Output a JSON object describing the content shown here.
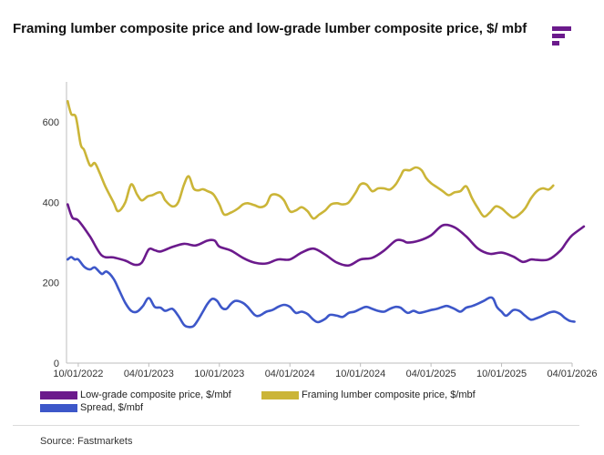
{
  "header": {
    "title": "Framing lumber composite price and low-grade lumber composite price, $/ mbf"
  },
  "brand": {
    "logo_icon": "fastmarkets-logo-icon",
    "color": "#6b1a8c"
  },
  "source": "Source: Fastmarkets",
  "chart_data": {
    "type": "line",
    "title": "Framing lumber composite price and low-grade lumber composite price, $/ mbf",
    "xlabel": "",
    "ylabel": "",
    "ylim": [
      0,
      700
    ],
    "yticks": [
      0,
      200,
      400,
      600
    ],
    "x_tick_labels": [
      "10/01/2022",
      "04/01/2023",
      "10/01/2023",
      "04/01/2024",
      "10/01/2024",
      "04/01/2025",
      "10/01/2025",
      "04/01/2026"
    ],
    "x_tick_positions": [
      0,
      6,
      12,
      18,
      24,
      30,
      36,
      42
    ],
    "x_range": [
      -1,
      42
    ],
    "x_index_note": "months since 10/01/2022",
    "grid": false,
    "legend_position": "bottom",
    "series": [
      {
        "name": "Low-grade composite price, $/mbf",
        "color": "#6b1a8c",
        "points": [
          [
            -0.9,
            395
          ],
          [
            -0.5,
            362
          ],
          [
            0,
            355
          ],
          [
            1,
            315
          ],
          [
            2,
            268
          ],
          [
            3,
            263
          ],
          [
            4,
            255
          ],
          [
            4.8,
            245
          ],
          [
            5.4,
            250
          ],
          [
            6,
            283
          ],
          [
            6.5,
            281
          ],
          [
            7,
            278
          ],
          [
            8,
            289
          ],
          [
            9,
            297
          ],
          [
            10,
            293
          ],
          [
            11,
            305
          ],
          [
            11.6,
            305
          ],
          [
            12,
            290
          ],
          [
            13,
            280
          ],
          [
            14,
            262
          ],
          [
            15,
            250
          ],
          [
            16,
            248
          ],
          [
            17,
            258
          ],
          [
            18,
            258
          ],
          [
            19,
            275
          ],
          [
            20,
            285
          ],
          [
            21,
            270
          ],
          [
            22,
            250
          ],
          [
            23,
            243
          ],
          [
            24,
            258
          ],
          [
            25,
            262
          ],
          [
            26,
            280
          ],
          [
            27,
            305
          ],
          [
            27.6,
            305
          ],
          [
            28,
            300
          ],
          [
            29,
            305
          ],
          [
            30,
            318
          ],
          [
            31,
            343
          ],
          [
            32,
            338
          ],
          [
            33,
            315
          ],
          [
            34,
            285
          ],
          [
            35,
            272
          ],
          [
            36,
            275
          ],
          [
            37,
            265
          ],
          [
            37.8,
            252
          ],
          [
            38.5,
            258
          ],
          [
            39,
            257
          ],
          [
            40,
            258
          ],
          [
            41,
            280
          ],
          [
            41.5,
            300
          ],
          [
            42,
            318
          ],
          [
            43,
            340
          ]
        ]
      },
      {
        "name": "Framing lumber composite price, $/mbf",
        "color": "#cbb538",
        "points": [
          [
            -0.9,
            652
          ],
          [
            -0.6,
            620
          ],
          [
            -0.2,
            612
          ],
          [
            0.2,
            545
          ],
          [
            0.5,
            530
          ],
          [
            1,
            492
          ],
          [
            1.4,
            498
          ],
          [
            1.8,
            475
          ],
          [
            2.3,
            440
          ],
          [
            3,
            400
          ],
          [
            3.4,
            378
          ],
          [
            4,
            400
          ],
          [
            4.5,
            445
          ],
          [
            5,
            420
          ],
          [
            5.4,
            405
          ],
          [
            5.9,
            415
          ],
          [
            6.3,
            418
          ],
          [
            7,
            425
          ],
          [
            7.4,
            405
          ],
          [
            8,
            390
          ],
          [
            8.5,
            400
          ],
          [
            9,
            445
          ],
          [
            9.4,
            465
          ],
          [
            9.8,
            435
          ],
          [
            10.2,
            430
          ],
          [
            10.6,
            433
          ],
          [
            11,
            428
          ],
          [
            11.5,
            420
          ],
          [
            12,
            395
          ],
          [
            12.4,
            370
          ],
          [
            13,
            375
          ],
          [
            13.6,
            385
          ],
          [
            14,
            395
          ],
          [
            14.4,
            398
          ],
          [
            15,
            393
          ],
          [
            15.5,
            388
          ],
          [
            16,
            395
          ],
          [
            16.4,
            418
          ],
          [
            17,
            418
          ],
          [
            17.5,
            405
          ],
          [
            18,
            378
          ],
          [
            18.5,
            380
          ],
          [
            19,
            388
          ],
          [
            19.5,
            378
          ],
          [
            20,
            360
          ],
          [
            20.5,
            370
          ],
          [
            21,
            380
          ],
          [
            21.5,
            395
          ],
          [
            22,
            398
          ],
          [
            22.5,
            395
          ],
          [
            23,
            400
          ],
          [
            23.6,
            425
          ],
          [
            24,
            445
          ],
          [
            24.5,
            445
          ],
          [
            25,
            428
          ],
          [
            25.5,
            435
          ],
          [
            26,
            435
          ],
          [
            26.5,
            432
          ],
          [
            27,
            445
          ],
          [
            27.4,
            465
          ],
          [
            27.7,
            480
          ],
          [
            28.2,
            480
          ],
          [
            28.7,
            487
          ],
          [
            29.2,
            480
          ],
          [
            29.6,
            460
          ],
          [
            30,
            448
          ],
          [
            30.5,
            438
          ],
          [
            31,
            428
          ],
          [
            31.5,
            418
          ],
          [
            32,
            425
          ],
          [
            32.5,
            428
          ],
          [
            33,
            440
          ],
          [
            33.5,
            410
          ],
          [
            34,
            385
          ],
          [
            34.5,
            365
          ],
          [
            35,
            375
          ],
          [
            35.5,
            390
          ],
          [
            36,
            385
          ],
          [
            36.5,
            372
          ],
          [
            37,
            362
          ],
          [
            37.5,
            370
          ],
          [
            38,
            385
          ],
          [
            38.5,
            410
          ],
          [
            39,
            428
          ],
          [
            39.5,
            435
          ],
          [
            40,
            432
          ],
          [
            40.4,
            442
          ]
        ]
      },
      {
        "name": "Spread, $/mbf",
        "color": "#3d57c9",
        "points": [
          [
            -0.9,
            258
          ],
          [
            -0.6,
            264
          ],
          [
            -0.3,
            258
          ],
          [
            0,
            258
          ],
          [
            0.5,
            240
          ],
          [
            1,
            233
          ],
          [
            1.4,
            238
          ],
          [
            2,
            222
          ],
          [
            2.4,
            228
          ],
          [
            3,
            210
          ],
          [
            3.5,
            180
          ],
          [
            4,
            150
          ],
          [
            4.5,
            130
          ],
          [
            5,
            128
          ],
          [
            5.5,
            142
          ],
          [
            6,
            162
          ],
          [
            6.5,
            140
          ],
          [
            7,
            138
          ],
          [
            7.4,
            130
          ],
          [
            8,
            135
          ],
          [
            8.5,
            118
          ],
          [
            9,
            95
          ],
          [
            9.4,
            90
          ],
          [
            9.8,
            92
          ],
          [
            10.2,
            108
          ],
          [
            10.6,
            128
          ],
          [
            11,
            148
          ],
          [
            11.4,
            160
          ],
          [
            11.8,
            155
          ],
          [
            12.2,
            138
          ],
          [
            12.6,
            135
          ],
          [
            13,
            148
          ],
          [
            13.4,
            155
          ],
          [
            14,
            150
          ],
          [
            14.4,
            140
          ],
          [
            15,
            120
          ],
          [
            15.4,
            118
          ],
          [
            16,
            128
          ],
          [
            16.5,
            132
          ],
          [
            17,
            140
          ],
          [
            17.5,
            145
          ],
          [
            18,
            140
          ],
          [
            18.5,
            125
          ],
          [
            19,
            128
          ],
          [
            19.5,
            122
          ],
          [
            20,
            108
          ],
          [
            20.4,
            102
          ],
          [
            21,
            110
          ],
          [
            21.4,
            120
          ],
          [
            22,
            118
          ],
          [
            22.5,
            115
          ],
          [
            23,
            125
          ],
          [
            23.5,
            128
          ],
          [
            24,
            135
          ],
          [
            24.5,
            140
          ],
          [
            25,
            135
          ],
          [
            25.5,
            130
          ],
          [
            26,
            128
          ],
          [
            26.5,
            135
          ],
          [
            27,
            140
          ],
          [
            27.4,
            138
          ],
          [
            28,
            125
          ],
          [
            28.5,
            130
          ],
          [
            29,
            125
          ],
          [
            29.5,
            128
          ],
          [
            30,
            132
          ],
          [
            30.5,
            135
          ],
          [
            31,
            140
          ],
          [
            31.4,
            142
          ],
          [
            32,
            135
          ],
          [
            32.5,
            128
          ],
          [
            33,
            138
          ],
          [
            33.5,
            142
          ],
          [
            34,
            148
          ],
          [
            34.5,
            155
          ],
          [
            35,
            163
          ],
          [
            35.3,
            160
          ],
          [
            35.6,
            140
          ],
          [
            36,
            128
          ],
          [
            36.4,
            118
          ],
          [
            37,
            132
          ],
          [
            37.5,
            130
          ],
          [
            38,
            118
          ],
          [
            38.5,
            108
          ],
          [
            39,
            112
          ],
          [
            39.5,
            118
          ],
          [
            40,
            125
          ],
          [
            40.5,
            128
          ],
          [
            41,
            122
          ],
          [
            41.4,
            112
          ],
          [
            41.8,
            105
          ],
          [
            42.2,
            103
          ]
        ]
      }
    ]
  }
}
